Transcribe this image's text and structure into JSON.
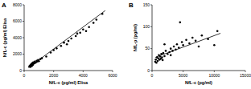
{
  "chart_data": [
    {
      "type": "scatter",
      "title": "A",
      "x_label": "NfL-c (pg/ml) Elisa",
      "y_label": "NfL-c (pg/ml) Elisa",
      "xlim": [
        0,
        6000
      ],
      "ylim": [
        0,
        8000
      ],
      "xticks": [
        0,
        2000,
        4000,
        6000
      ],
      "yticks": [
        0,
        2000,
        4000,
        6000,
        8000
      ],
      "series": [
        {
          "type": "scatter",
          "color": "#000000",
          "marker": "circle",
          "x": [
            350,
            400,
            420,
            450,
            480,
            500,
            520,
            550,
            580,
            600,
            620,
            650,
            700,
            720,
            750,
            800,
            850,
            900,
            950,
            1000,
            1100,
            1200,
            1500,
            1800,
            2000,
            2200,
            2500,
            2700,
            3000,
            3200,
            3500,
            3800,
            4000,
            4200,
            4400,
            4700,
            4900,
            5300,
            3600,
            2900
          ],
          "values": [
            500,
            600,
            450,
            700,
            650,
            800,
            550,
            900,
            750,
            700,
            1000,
            850,
            900,
            1100,
            950,
            1000,
            1200,
            1100,
            1300,
            1150,
            1400,
            1500,
            1700,
            2200,
            2500,
            2700,
            3000,
            3400,
            3600,
            3900,
            4200,
            4600,
            5000,
            4800,
            5300,
            5800,
            6200,
            6900,
            4500,
            3200
          ]
        },
        {
          "type": "line",
          "color": "#000000",
          "line_style": "solid",
          "x": [
            300,
            5500
          ],
          "values": [
            350,
            7300
          ]
        }
      ]
    },
    {
      "type": "scatter",
      "title": "B",
      "x_label": "NfL-c (pg/ml)",
      "y_label": "NfL-p (pg/ml)",
      "xlim": [
        0,
        15000
      ],
      "ylim": [
        0,
        150
      ],
      "xticks": [
        0,
        5000,
        10000,
        15000
      ],
      "yticks": [
        0,
        50,
        100,
        150
      ],
      "series": [
        {
          "type": "scatter",
          "color": "#000000",
          "marker": "circle",
          "x": [
            500,
            600,
            700,
            800,
            900,
            1000,
            1100,
            1200,
            1300,
            1400,
            1500,
            1600,
            1700,
            1800,
            2000,
            2200,
            2500,
            2800,
            3000,
            3300,
            3500,
            3800,
            4000,
            4300,
            4500,
            4800,
            5000,
            5500,
            6000,
            6500,
            7000,
            7500,
            8000,
            9000,
            10000,
            10500,
            3000,
            2000
          ],
          "values": [
            20,
            25,
            18,
            30,
            22,
            28,
            35,
            25,
            32,
            27,
            38,
            30,
            24,
            40,
            33,
            45,
            38,
            42,
            50,
            45,
            55,
            48,
            60,
            52,
            110,
            65,
            58,
            70,
            62,
            75,
            68,
            55,
            80,
            72,
            58,
            90,
            35,
            60
          ]
        },
        {
          "type": "line",
          "color": "#000000",
          "line_style": "solid",
          "x": [
            500,
            11000
          ],
          "values": [
            30,
            85
          ]
        }
      ]
    }
  ]
}
